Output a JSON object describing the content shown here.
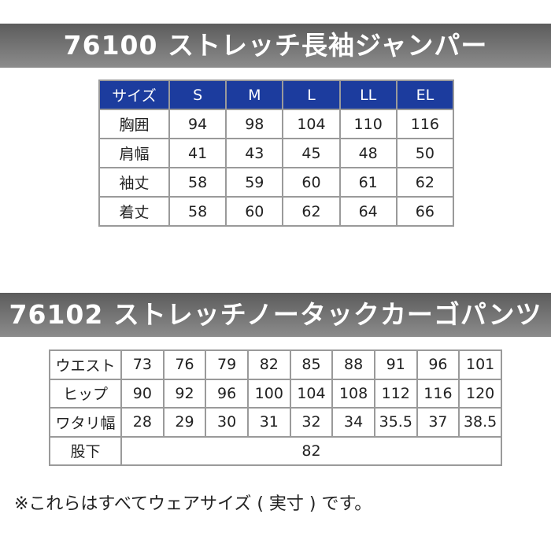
{
  "sections": [
    {
      "title": "76100 ストレッチ長袖ジャンパー",
      "table": {
        "header": [
          "サイズ",
          "S",
          "M",
          "L",
          "LL",
          "EL"
        ],
        "rows": [
          [
            "胸囲",
            94,
            98,
            104,
            110,
            116
          ],
          [
            "肩幅",
            41,
            43,
            45,
            48,
            50
          ],
          [
            "袖丈",
            58,
            59,
            60,
            61,
            62
          ],
          [
            "着丈",
            58,
            60,
            62,
            64,
            66
          ]
        ]
      }
    },
    {
      "title": "76102 ストレッチノータックカーゴパンツ",
      "table": {
        "rows": [
          [
            "ウエスト",
            73,
            76,
            79,
            82,
            85,
            88,
            91,
            96,
            101
          ],
          [
            "ヒップ",
            90,
            92,
            96,
            100,
            104,
            108,
            112,
            116,
            120
          ],
          [
            "ワタリ幅",
            28,
            29,
            30,
            31,
            32,
            34,
            35.5,
            37,
            38.5
          ],
          [
            "股下",
            82
          ]
        ]
      }
    }
  ],
  "note": "※これらはすべてウェアサイズ ( 実寸 ) です。"
}
